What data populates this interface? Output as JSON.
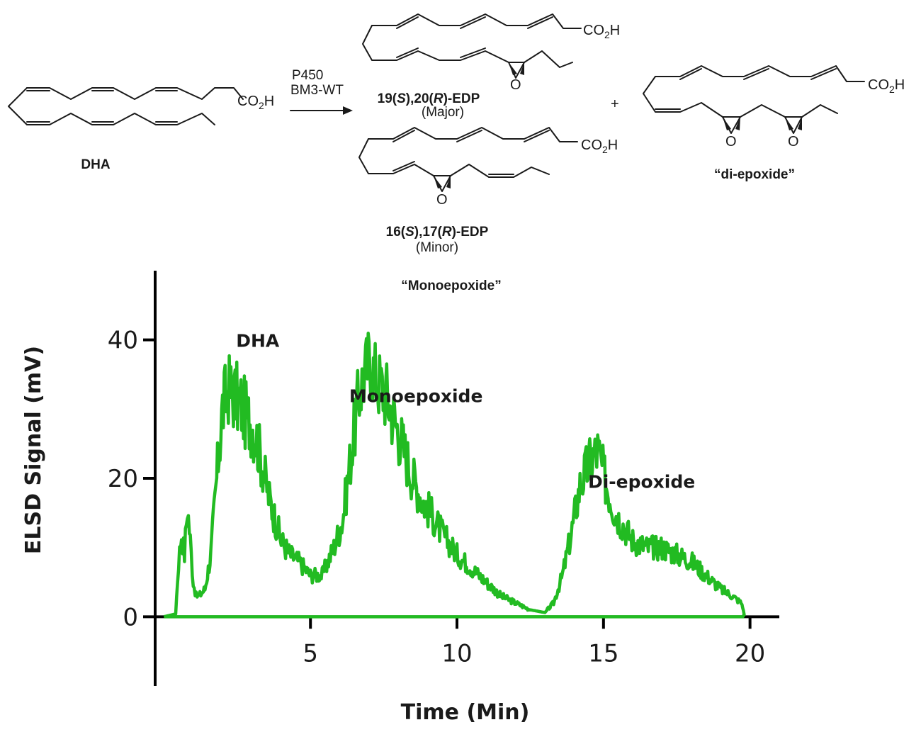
{
  "scheme": {
    "reactant_label": "DHA",
    "reagent_line1": "P450",
    "reagent_line2": "BM3-WT",
    "co2h": "CO",
    "co2h_sub": "2",
    "co2h_tail": "H",
    "epoxide_o": "O",
    "plus": "+",
    "product1": {
      "p1": "19(",
      "p2": "S",
      "p3": "),20(",
      "p4": "R",
      "p5": ")-EDP",
      "note": "(Major)"
    },
    "product2": {
      "p1": "16(",
      "p2": "S",
      "p3": "),17(",
      "p4": "R",
      "p5": ")-EDP",
      "note": "(Minor)"
    },
    "product3_label": "“di-epoxide”",
    "group_label": "“Monoepoxide”"
  },
  "chart_data": {
    "type": "line",
    "xlabel": "Time (Min)",
    "ylabel": "ELSD Signal (mV)",
    "xlim": [
      -0.3,
      21
    ],
    "ylim": [
      -10,
      50
    ],
    "xticks": [
      5,
      10,
      15,
      20
    ],
    "yticks": [
      0,
      20,
      40
    ],
    "grid": false,
    "annotations": [
      {
        "text": "DHA",
        "x": 3.2,
        "y": 39
      },
      {
        "text": "Monoepoxide",
        "x": 8.6,
        "y": 31
      },
      {
        "text": "Di-epoxide",
        "x": 16.3,
        "y": 18.6
      }
    ],
    "series": [
      {
        "color": "#22bb22",
        "x": [
          0,
          0.4,
          0.5,
          0.6,
          0.7,
          0.8,
          0.9,
          1.0,
          1.1,
          1.2,
          1.4,
          1.6,
          1.8,
          2.0,
          2.2,
          2.4,
          2.6,
          2.8,
          3.0,
          3.2,
          3.4,
          3.6,
          3.8,
          4.0,
          4.3,
          4.6,
          5.0,
          5.4,
          5.8,
          6.1,
          6.4,
          6.7,
          7.0,
          7.3,
          7.6,
          7.9,
          8.2,
          8.5,
          8.8,
          9.1,
          9.5,
          10.0,
          10.5,
          11.0,
          11.5,
          12.0,
          12.5,
          13.0,
          13.3,
          13.6,
          13.9,
          14.2,
          14.5,
          14.8,
          15.1,
          15.4,
          15.7,
          16.0,
          16.5,
          17.0,
          17.5,
          18.0,
          18.5,
          19.0,
          19.4,
          19.7,
          19.75,
          19.8,
          19.75
        ],
        "y": [
          0,
          0.4,
          8,
          12,
          9,
          16,
          11,
          5,
          3,
          3,
          4,
          9,
          20,
          30,
          33,
          32,
          31,
          29,
          28,
          25,
          21,
          17,
          14,
          11,
          9,
          8,
          6,
          6,
          10,
          14,
          24,
          33,
          37,
          34,
          32,
          28,
          24,
          20,
          17,
          15,
          12,
          9,
          7,
          5,
          3,
          2,
          1,
          0.6,
          2,
          6,
          12,
          19,
          22,
          24,
          19,
          15,
          13,
          11,
          10,
          10,
          9,
          8,
          6,
          4,
          3,
          2,
          1.5,
          0.3,
          0
        ]
      }
    ]
  }
}
